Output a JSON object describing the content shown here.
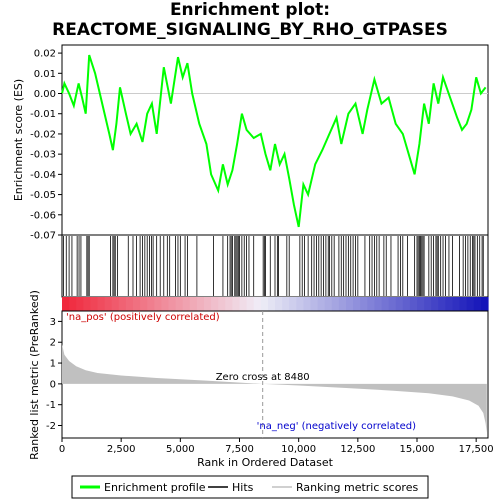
{
  "title_line1": "Enrichment plot:",
  "title_line2": "REACTOME_SIGNALING_BY_RHO_GTPASES",
  "chart_data": {
    "type": "line",
    "es_ylabel": "Enrichment score (ES)",
    "metric_ylabel": "Ranked list metric (PreRanked)",
    "xlabel": "Rank in Ordered Dataset",
    "xlim": [
      0,
      18000
    ],
    "es_ylim": [
      -0.07,
      0.024
    ],
    "metric_ylim": [
      -2.6,
      3.5
    ],
    "xticks": [
      0,
      2500,
      5000,
      7500,
      10000,
      12500,
      15000,
      17500
    ],
    "xtick_labels": [
      "0",
      "2,500",
      "5,000",
      "7,500",
      "10,000",
      "12,500",
      "15,000",
      "17,500"
    ],
    "es_yticks": [
      0.02,
      0.01,
      0.0,
      -0.01,
      -0.02,
      -0.03,
      -0.04,
      -0.05,
      -0.06,
      -0.07
    ],
    "es_ytick_labels": [
      "0.02",
      "0.01",
      "0.00",
      "-0.01",
      "-0.02",
      "-0.03",
      "-0.04",
      "-0.05",
      "-0.06",
      "-0.07"
    ],
    "metric_yticks": [
      3,
      2,
      1,
      0,
      -1,
      -2
    ],
    "metric_ytick_labels": [
      "3",
      "2",
      "1",
      "0",
      "-1",
      "-2"
    ],
    "zero_cross": 8480,
    "zero_cross_label": "Zero cross at 8480",
    "pos_label": "'na_pos' (positively correlated)",
    "neg_label": "'na_neg' (negatively correlated)",
    "es_curve": [
      [
        0,
        0.0
      ],
      [
        100,
        0.005
      ],
      [
        300,
        0.0
      ],
      [
        500,
        -0.006
      ],
      [
        700,
        0.005
      ],
      [
        850,
        -0.002
      ],
      [
        1000,
        -0.01
      ],
      [
        1150,
        0.019
      ],
      [
        1400,
        0.01
      ],
      [
        1700,
        -0.005
      ],
      [
        2000,
        -0.02
      ],
      [
        2150,
        -0.028
      ],
      [
        2300,
        -0.015
      ],
      [
        2450,
        0.003
      ],
      [
        2700,
        -0.01
      ],
      [
        2900,
        -0.02
      ],
      [
        3150,
        -0.015
      ],
      [
        3400,
        -0.024
      ],
      [
        3600,
        -0.01
      ],
      [
        3800,
        -0.005
      ],
      [
        4000,
        -0.02
      ],
      [
        4300,
        0.013
      ],
      [
        4600,
        -0.005
      ],
      [
        4900,
        0.018
      ],
      [
        5100,
        0.008
      ],
      [
        5300,
        0.015
      ],
      [
        5500,
        0.0
      ],
      [
        5800,
        -0.015
      ],
      [
        6100,
        -0.025
      ],
      [
        6300,
        -0.04
      ],
      [
        6600,
        -0.048
      ],
      [
        6800,
        -0.035
      ],
      [
        7000,
        -0.045
      ],
      [
        7200,
        -0.038
      ],
      [
        7400,
        -0.025
      ],
      [
        7600,
        -0.01
      ],
      [
        7800,
        -0.018
      ],
      [
        8100,
        -0.022
      ],
      [
        8400,
        -0.02
      ],
      [
        8600,
        -0.03
      ],
      [
        8800,
        -0.038
      ],
      [
        9000,
        -0.025
      ],
      [
        9200,
        -0.035
      ],
      [
        9400,
        -0.03
      ],
      [
        9600,
        -0.042
      ],
      [
        9800,
        -0.055
      ],
      [
        10000,
        -0.066
      ],
      [
        10200,
        -0.045
      ],
      [
        10400,
        -0.05
      ],
      [
        10700,
        -0.035
      ],
      [
        11000,
        -0.028
      ],
      [
        11300,
        -0.02
      ],
      [
        11600,
        -0.012
      ],
      [
        11800,
        -0.025
      ],
      [
        12100,
        -0.01
      ],
      [
        12400,
        -0.005
      ],
      [
        12700,
        -0.02
      ],
      [
        12900,
        -0.008
      ],
      [
        13200,
        0.007
      ],
      [
        13500,
        -0.005
      ],
      [
        13800,
        -0.002
      ],
      [
        14100,
        -0.015
      ],
      [
        14400,
        -0.02
      ],
      [
        14700,
        -0.032
      ],
      [
        14900,
        -0.04
      ],
      [
        15100,
        -0.025
      ],
      [
        15300,
        -0.005
      ],
      [
        15500,
        -0.015
      ],
      [
        15700,
        0.005
      ],
      [
        15900,
        -0.005
      ],
      [
        16100,
        0.008
      ],
      [
        16400,
        -0.002
      ],
      [
        16700,
        -0.012
      ],
      [
        16900,
        -0.018
      ],
      [
        17100,
        -0.015
      ],
      [
        17300,
        -0.008
      ],
      [
        17500,
        0.008
      ],
      [
        17700,
        0.0
      ],
      [
        17900,
        0.003
      ]
    ],
    "hits": [
      60,
      180,
      300,
      420,
      640,
      720,
      800,
      1050,
      1100,
      1150,
      2050,
      2150,
      2200,
      2250,
      2350,
      2800,
      3000,
      3150,
      3300,
      3400,
      3500,
      3600,
      3700,
      3780,
      3850,
      4000,
      4150,
      4300,
      4450,
      4550,
      4800,
      4900,
      5000,
      5200,
      5300,
      5700,
      6400,
      6800,
      7000,
      7100,
      7150,
      7200,
      7300,
      7350,
      7400,
      7450,
      7500,
      7600,
      7700,
      7800,
      7900,
      8100,
      8500,
      8550,
      8600,
      8800,
      9000,
      9100,
      9150,
      9500,
      9600,
      10050,
      10150,
      10250,
      10400,
      10550,
      10650,
      10750,
      10850,
      10950,
      11050,
      11150,
      11250,
      11300,
      11400,
      11500,
      11700,
      11800,
      11900,
      12000,
      12100,
      12200,
      12300,
      12400,
      12500,
      12800,
      13000,
      13100,
      13200,
      13300,
      13400,
      13600,
      13700,
      13900,
      14200,
      14300,
      14400,
      14600,
      14900,
      15000,
      15050,
      15100,
      15150,
      15200,
      15250,
      15300,
      15500,
      15600,
      15700,
      15800,
      15850,
      15900,
      16000,
      16100,
      16200,
      16350,
      16500,
      16800,
      16950,
      17050,
      17150,
      17250,
      17350,
      17400,
      17450,
      17550,
      17650,
      17750,
      17800
    ],
    "metric_profile": [
      [
        0,
        1.9
      ],
      [
        100,
        1.4
      ],
      [
        300,
        1.1
      ],
      [
        600,
        0.85
      ],
      [
        1000,
        0.65
      ],
      [
        1500,
        0.52
      ],
      [
        2500,
        0.4
      ],
      [
        4000,
        0.28
      ],
      [
        6000,
        0.16
      ],
      [
        8480,
        0.0
      ],
      [
        10000,
        -0.08
      ],
      [
        12000,
        -0.2
      ],
      [
        14000,
        -0.33
      ],
      [
        15500,
        -0.45
      ],
      [
        16500,
        -0.6
      ],
      [
        17200,
        -0.8
      ],
      [
        17600,
        -1.05
      ],
      [
        17800,
        -1.4
      ],
      [
        17900,
        -1.9
      ],
      [
        17950,
        -2.35
      ]
    ]
  },
  "legend": {
    "items": [
      {
        "label": "Enrichment profile",
        "color": "#00ff00"
      },
      {
        "label": "Hits",
        "color": "#000000"
      },
      {
        "label": "Ranking metric scores",
        "color": "#c0c0c0"
      }
    ]
  }
}
